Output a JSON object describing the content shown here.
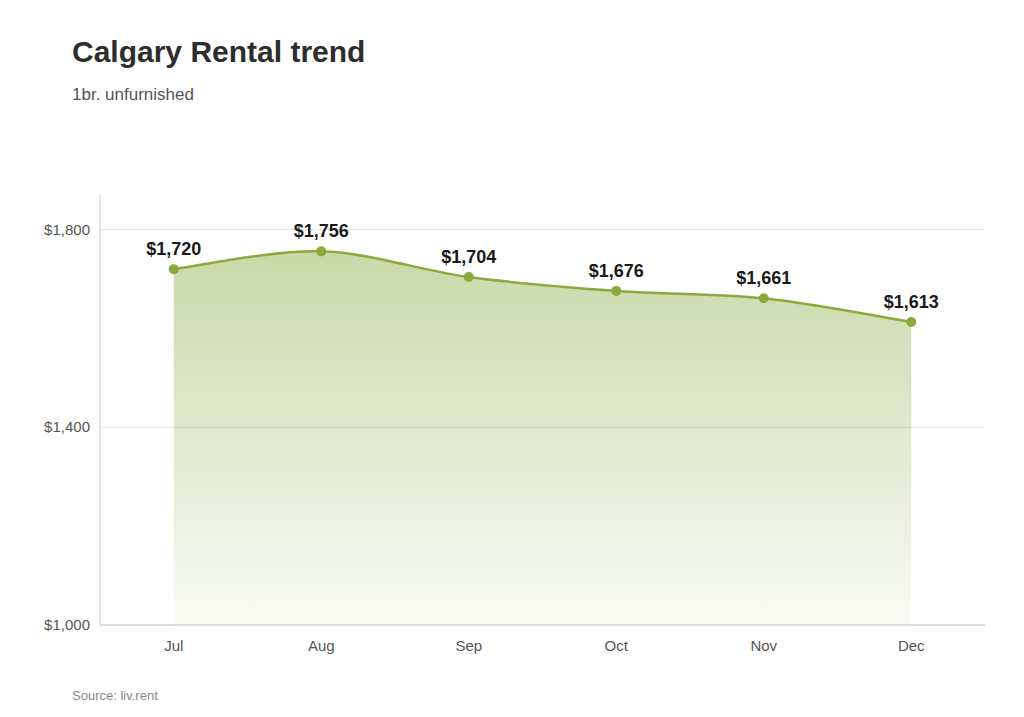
{
  "chart_data": {
    "type": "area",
    "title": "Calgary Rental trend",
    "subtitle": "1br. unfurnished",
    "source": "Source: liv.rent",
    "categories": [
      "Jul",
      "Aug",
      "Sep",
      "Oct",
      "Nov",
      "Dec"
    ],
    "values": [
      1720,
      1756,
      1704,
      1676,
      1661,
      1613
    ],
    "value_labels": [
      "$1,720",
      "$1,756",
      "$1,704",
      "$1,676",
      "$1,661",
      "$1,613"
    ],
    "data_labels": true,
    "color": "#8aaa3e",
    "marker": "circle",
    "line_style": "smooth",
    "ylim": [
      1000,
      1870
    ],
    "yticks": [
      {
        "value": 1000,
        "label": "$1,000"
      },
      {
        "value": 1400,
        "label": "$1,400"
      },
      {
        "value": 1800,
        "label": "$1,800"
      }
    ],
    "grid": true
  }
}
